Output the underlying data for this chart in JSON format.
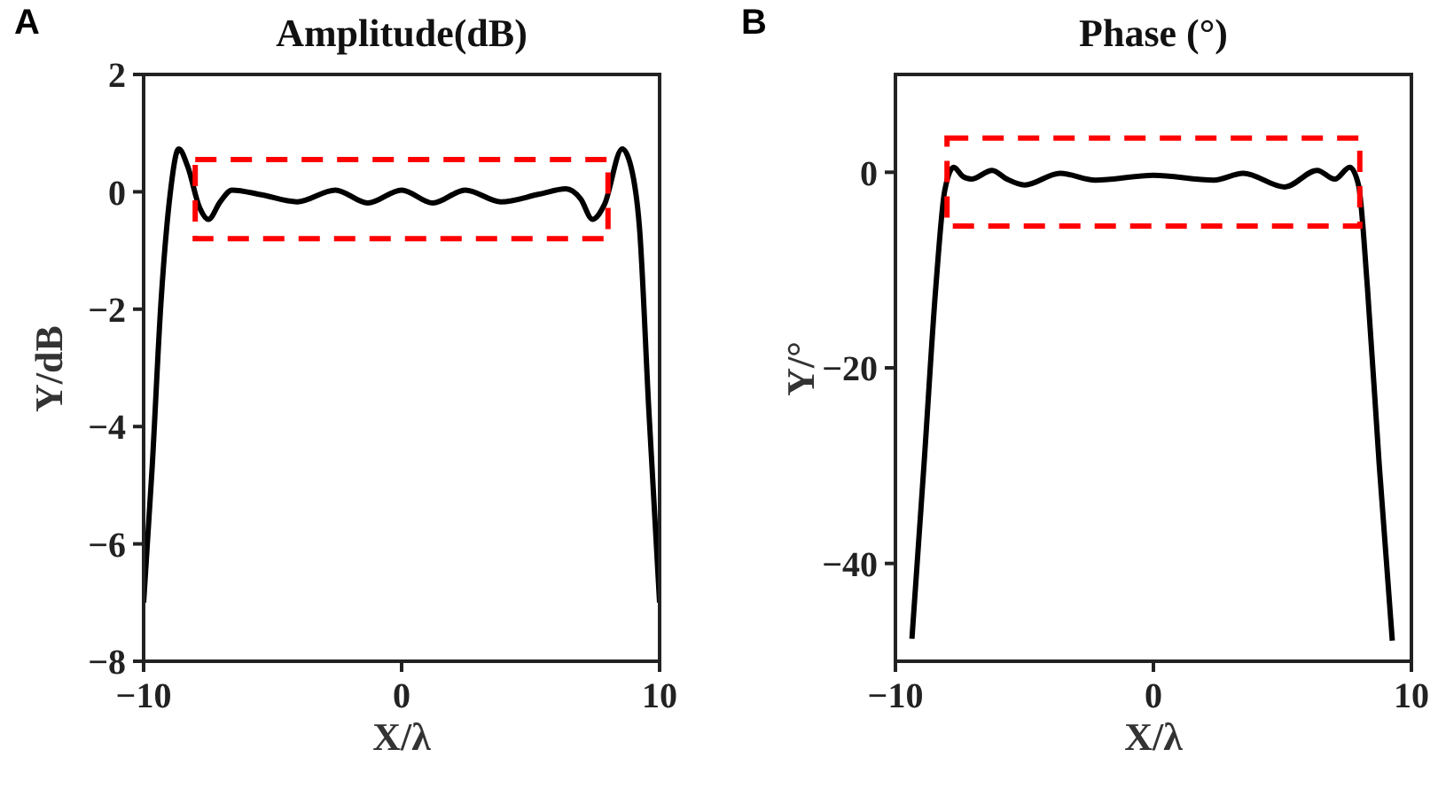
{
  "chart_data": [
    {
      "type": "line",
      "title": "Amplitude(dB)",
      "xlabel": "X/λ",
      "ylabel": "Y/dB",
      "annotations": [
        "A"
      ],
      "series": [
        {
          "color": "#000000",
          "x": [
            -10,
            -9.67,
            -9.33,
            -8.98,
            -8.64,
            -8.29,
            -7.83,
            -7.49,
            -7.03,
            -6.58,
            -5.43,
            -4.05,
            -2.57,
            -1.31,
            0,
            1.21,
            2.47,
            3.85,
            5.34,
            6.37,
            6.94,
            7.4,
            7.86,
            8.55,
            8.89,
            9.23,
            9.58,
            10
          ],
          "values": [
            -7,
            -4.7,
            -1.9,
            -0.07,
            0.73,
            0.43,
            -0.27,
            -0.47,
            -0.17,
            0.03,
            -0.05,
            -0.17,
            0.03,
            -0.19,
            0.03,
            -0.19,
            0.03,
            -0.17,
            -0.04,
            0.05,
            -0.12,
            -0.47,
            -0.22,
            0.73,
            0.43,
            -0.67,
            -3.7,
            -7
          ]
        }
      ],
      "xlim": [
        -10,
        10
      ],
      "xticks": [
        -10,
        0,
        10
      ],
      "ylim": [
        -8,
        2
      ],
      "yticks": [
        -8,
        -6,
        -4,
        -2,
        0,
        2
      ]
    },
    {
      "type": "line",
      "title": "Phase (°)",
      "xlabel": "X/λ",
      "ylabel": "Y/°",
      "annotations": [
        "B"
      ],
      "series": [
        {
          "color": "#000000",
          "x": [
            -9.36,
            -8.89,
            -8.43,
            -8.09,
            -7.74,
            -7.4,
            -7.06,
            -6.25,
            -5.68,
            -4.99,
            -3.62,
            -2.25,
            0,
            2.34,
            3.48,
            5.09,
            6.35,
            7.03,
            7.61,
            7.95,
            8.29,
            8.75,
            9.26
          ],
          "values": [
            -47.7,
            -29.8,
            -11.6,
            -1.9,
            0.5,
            -0.4,
            -0.7,
            0.2,
            -0.7,
            -1.3,
            -0.1,
            -0.8,
            -0.3,
            -0.8,
            -0.1,
            -1.5,
            0.2,
            -0.7,
            0.5,
            -1.3,
            -11.6,
            -29.8,
            -47.9
          ]
        }
      ],
      "xlim": [
        -10,
        10
      ],
      "xticks": [
        -10,
        0,
        10
      ],
      "ylim": [
        -50,
        10
      ],
      "yticks": [
        -40,
        -20,
        0
      ]
    }
  ]
}
